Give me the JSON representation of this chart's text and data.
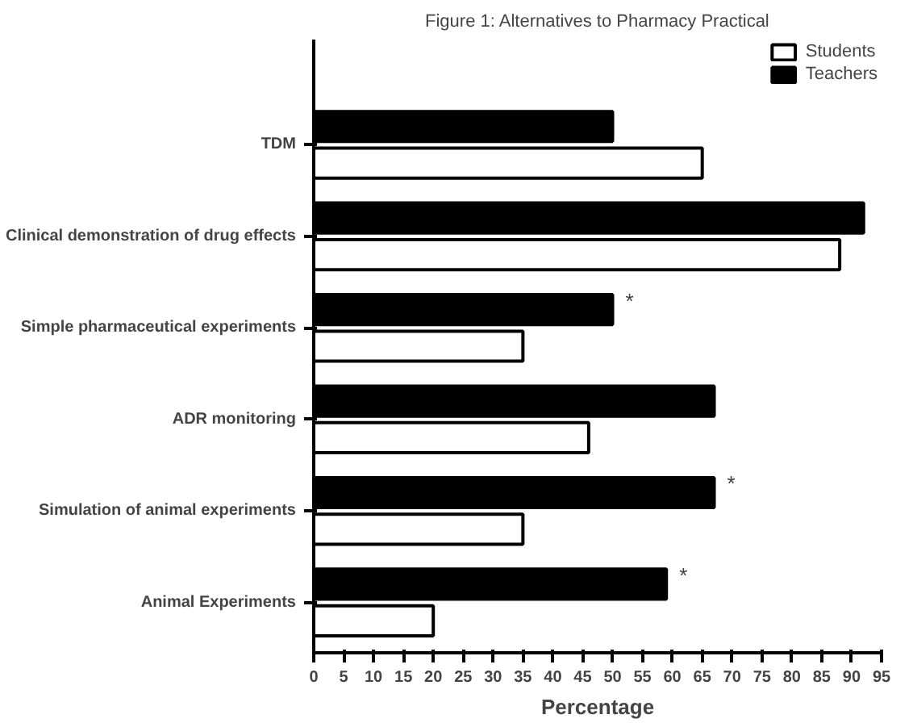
{
  "chart_data": {
    "type": "bar",
    "orientation": "horizontal",
    "title": "Figure 1: Alternatives to Pharmacy Practical",
    "xlabel": "Percentage",
    "categories": [
      "TDM",
      "Clinical demonstration of drug effects",
      "Simple pharmaceutical experiments",
      "ADR monitoring",
      "Simulation of animal experiments",
      "Animal Experiments"
    ],
    "series": [
      {
        "name": "Students",
        "color": "#ffffff",
        "values": [
          65,
          88,
          35,
          46,
          35,
          20
        ]
      },
      {
        "name": "Teachers",
        "color": "#000000",
        "values": [
          50,
          92,
          50,
          67,
          67,
          59
        ]
      }
    ],
    "xlim": [
      0,
      95
    ],
    "xticks": [
      0,
      5,
      10,
      15,
      20,
      25,
      30,
      35,
      40,
      45,
      50,
      55,
      60,
      65,
      70,
      75,
      80,
      85,
      90,
      95
    ],
    "annotations": [
      {
        "text": "*",
        "x": 50,
        "y": "Simple pharmaceutical experiments"
      },
      {
        "text": "*",
        "x": 67,
        "y": "Simulation of animal experiments"
      },
      {
        "text": "*",
        "x": 59,
        "y": "Animal Experiments"
      }
    ],
    "grid": false,
    "legend": "top right"
  }
}
